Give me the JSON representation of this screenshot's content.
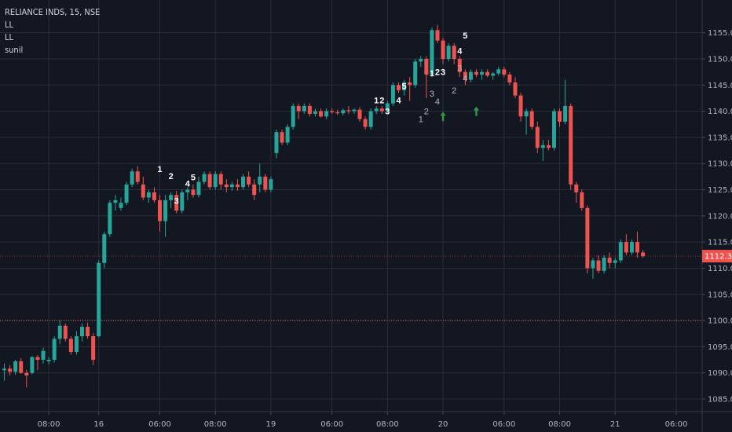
{
  "legend": {
    "symbol": "RELIANCE INDS, 15, NSE",
    "indicator1": "LL",
    "indicator2": "LL",
    "indicator3": "sunil"
  },
  "colors": {
    "background": "#131722",
    "grid": "#2a2e39",
    "up": "#26a69a",
    "down": "#ef5350",
    "price_line": "#ef5350",
    "arrow": "#2e9d3e",
    "axis_text": "#b2b5be"
  },
  "chart_data": {
    "type": "candlestick",
    "title": "RELIANCE INDS, 15, NSE",
    "ylim": [
      1082,
      1159
    ],
    "y_ticks": [
      1085,
      1090,
      1095,
      1100,
      1105,
      1110,
      1115,
      1120,
      1125,
      1130,
      1135,
      1140,
      1145,
      1150,
      1155
    ],
    "y_tick_labels": [
      "1085.00",
      "1090.00",
      "1095.00",
      "1100.00",
      "1105.00",
      "1110.00",
      "1115.00",
      "1120.00",
      "1125.00",
      "1130.00",
      "1135.00",
      "1140.00",
      "1145.00",
      "1150.00",
      "1155.00"
    ],
    "x_ticks": [
      {
        "label": "08:00",
        "bar": 8
      },
      {
        "label": "16",
        "bar": 17
      },
      {
        "label": "06:00",
        "bar": 28
      },
      {
        "label": "08:00",
        "bar": 38
      },
      {
        "label": "19",
        "bar": 48
      },
      {
        "label": "06:00",
        "bar": 59
      },
      {
        "label": "08:00",
        "bar": 69
      },
      {
        "label": "20",
        "bar": 79
      },
      {
        "label": "06:00",
        "bar": 90
      },
      {
        "label": "08:00",
        "bar": 100
      },
      {
        "label": "21",
        "bar": 110
      },
      {
        "label": "06:00",
        "bar": 121
      }
    ],
    "last_price": 1112.3,
    "last_price_label": "1112.30",
    "reference_line": 1100.0,
    "grid": true,
    "ohlc": [
      [
        1090.5,
        1091.8,
        1088.5,
        1090.8
      ],
      [
        1090.8,
        1091.5,
        1089.5,
        1090.2
      ],
      [
        1090.2,
        1092.5,
        1089.6,
        1092.2
      ],
      [
        1092.2,
        1092.8,
        1089.8,
        1090.0
      ],
      [
        1090.0,
        1090.6,
        1087.2,
        1089.5
      ],
      [
        1090.0,
        1093.2,
        1089.7,
        1093.0
      ],
      [
        1093.0,
        1093.4,
        1090.5,
        1092.5
      ],
      [
        1092.5,
        1094.8,
        1091.8,
        1094.2
      ],
      [
        1092.2,
        1093.0,
        1091.6,
        1092.5
      ],
      [
        1092.5,
        1097.0,
        1092.0,
        1096.5
      ],
      [
        1096.5,
        1100.0,
        1095.5,
        1099.0
      ],
      [
        1099.0,
        1099.4,
        1096.0,
        1096.5
      ],
      [
        1096.5,
        1097.0,
        1093.5,
        1094.0
      ],
      [
        1094.0,
        1098.0,
        1093.5,
        1097.0
      ],
      [
        1097.0,
        1099.5,
        1096.0,
        1098.8
      ],
      [
        1098.8,
        1099.6,
        1096.5,
        1097.0
      ],
      [
        1097.0,
        1097.6,
        1091.5,
        1092.5
      ],
      [
        1097.0,
        1111.5,
        1096.8,
        1111.0
      ],
      [
        1111.0,
        1117.0,
        1110.0,
        1116.5
      ],
      [
        1116.5,
        1123.0,
        1116.0,
        1122.5
      ],
      [
        1122.5,
        1124.0,
        1121.0,
        1123.0
      ],
      [
        1121.5,
        1123.5,
        1121.0,
        1122.5
      ],
      [
        1122.5,
        1126.5,
        1122.0,
        1126.0
      ],
      [
        1126.0,
        1129.0,
        1125.5,
        1128.5
      ],
      [
        1128.5,
        1129.5,
        1126.0,
        1126.5
      ],
      [
        1126.0,
        1127.5,
        1123.0,
        1123.5
      ],
      [
        1123.5,
        1125.0,
        1122.5,
        1124.5
      ],
      [
        1124.5,
        1125.5,
        1122.5,
        1123.0
      ],
      [
        1123.0,
        1124.0,
        1117.0,
        1119.0
      ],
      [
        1119.0,
        1124.0,
        1116.0,
        1123.0
      ],
      [
        1123.0,
        1124.5,
        1121.5,
        1124.0
      ],
      [
        1124.0,
        1124.8,
        1120.5,
        1121.0
      ],
      [
        1121.0,
        1125.0,
        1120.5,
        1124.5
      ],
      [
        1124.5,
        1125.5,
        1123.0,
        1125.0
      ],
      [
        1125.0,
        1126.0,
        1123.5,
        1124.0
      ],
      [
        1124.0,
        1127.5,
        1123.5,
        1126.5
      ],
      [
        1126.5,
        1128.5,
        1126.0,
        1128.0
      ],
      [
        1128.0,
        1128.5,
        1125.0,
        1125.5
      ],
      [
        1125.5,
        1128.5,
        1125.0,
        1128.0
      ],
      [
        1128.0,
        1128.5,
        1125.0,
        1126.0
      ],
      [
        1126.0,
        1127.0,
        1124.5,
        1125.5
      ],
      [
        1125.5,
        1126.5,
        1124.8,
        1126.0
      ],
      [
        1126.0,
        1127.0,
        1124.8,
        1125.5
      ],
      [
        1125.5,
        1128.0,
        1125.0,
        1127.5
      ],
      [
        1127.5,
        1128.5,
        1125.5,
        1126.0
      ],
      [
        1126.0,
        1127.0,
        1123.0,
        1124.0
      ],
      [
        1126.0,
        1130.0,
        1124.5,
        1127.5
      ],
      [
        1127.5,
        1128.0,
        1124.5,
        1125.0
      ],
      [
        1125.0,
        1127.5,
        1124.5,
        1127.0
      ],
      [
        1132.0,
        1136.5,
        1131.0,
        1136.0
      ],
      [
        1136.0,
        1136.5,
        1133.5,
        1134.0
      ],
      [
        1134.0,
        1137.5,
        1133.5,
        1137.0
      ],
      [
        1137.0,
        1141.5,
        1136.5,
        1141.0
      ],
      [
        1141.0,
        1141.5,
        1138.5,
        1140.0
      ],
      [
        1140.0,
        1141.5,
        1139.5,
        1141.0
      ],
      [
        1141.0,
        1141.5,
        1139.0,
        1139.5
      ],
      [
        1139.5,
        1140.5,
        1139.0,
        1140.0
      ],
      [
        1140.0,
        1140.5,
        1138.8,
        1139.0
      ],
      [
        1139.0,
        1140.5,
        1138.5,
        1140.0
      ],
      [
        1140.0,
        1140.5,
        1139.5,
        1139.8
      ],
      [
        1139.8,
        1140.3,
        1139.3,
        1139.6
      ],
      [
        1139.6,
        1140.5,
        1139.2,
        1140.2
      ],
      [
        1140.2,
        1141.0,
        1139.5,
        1140.0
      ],
      [
        1140.0,
        1140.5,
        1139.5,
        1140.3
      ],
      [
        1140.3,
        1140.8,
        1138.0,
        1138.5
      ],
      [
        1138.5,
        1139.0,
        1136.5,
        1137.0
      ],
      [
        1137.0,
        1140.5,
        1136.5,
        1140.0
      ],
      [
        1140.0,
        1141.0,
        1139.5,
        1140.5
      ],
      [
        1140.5,
        1141.0,
        1139.5,
        1140.0
      ],
      [
        1140.0,
        1142.0,
        1139.5,
        1141.5
      ],
      [
        1141.5,
        1145.5,
        1141.0,
        1145.0
      ],
      [
        1145.0,
        1145.5,
        1143.5,
        1144.0
      ],
      [
        1144.0,
        1146.0,
        1143.0,
        1145.5
      ],
      [
        1145.5,
        1146.5,
        1142.0,
        1145.0
      ],
      [
        1145.0,
        1150.0,
        1144.5,
        1149.5
      ],
      [
        1149.5,
        1150.5,
        1148.5,
        1150.0
      ],
      [
        1150.0,
        1150.5,
        1142.5,
        1147.0
      ],
      [
        1147.0,
        1156.0,
        1146.5,
        1155.5
      ],
      [
        1155.5,
        1156.5,
        1153.0,
        1153.5
      ],
      [
        1153.5,
        1154.0,
        1149.0,
        1150.0
      ],
      [
        1150.0,
        1153.0,
        1149.5,
        1152.5
      ],
      [
        1152.5,
        1153.0,
        1149.0,
        1150.0
      ],
      [
        1150.0,
        1150.5,
        1146.5,
        1147.5
      ],
      [
        1147.5,
        1148.0,
        1145.0,
        1146.0
      ],
      [
        1146.0,
        1148.0,
        1145.5,
        1147.5
      ],
      [
        1147.5,
        1148.0,
        1146.5,
        1147.0
      ],
      [
        1147.0,
        1148.0,
        1146.0,
        1147.5
      ],
      [
        1147.5,
        1148.0,
        1146.5,
        1146.8
      ],
      [
        1146.8,
        1147.5,
        1146.0,
        1147.2
      ],
      [
        1147.2,
        1148.5,
        1146.8,
        1148.0
      ],
      [
        1148.0,
        1148.5,
        1146.5,
        1147.0
      ],
      [
        1147.0,
        1147.5,
        1145.0,
        1145.5
      ],
      [
        1145.5,
        1146.5,
        1142.5,
        1143.0
      ],
      [
        1143.0,
        1143.5,
        1138.0,
        1139.0
      ],
      [
        1139.0,
        1140.5,
        1135.5,
        1140.0
      ],
      [
        1140.0,
        1140.5,
        1136.5,
        1137.0
      ],
      [
        1137.0,
        1138.0,
        1132.0,
        1133.0
      ],
      [
        1133.0,
        1134.5,
        1130.5,
        1133.5
      ],
      [
        1133.5,
        1134.5,
        1132.5,
        1133.0
      ],
      [
        1133.0,
        1140.5,
        1132.5,
        1140.0
      ],
      [
        1140.0,
        1140.5,
        1137.0,
        1138.0
      ],
      [
        1138.0,
        1146.0,
        1137.5,
        1141.0
      ],
      [
        1141.0,
        1141.5,
        1125.0,
        1126.0
      ],
      [
        1126.0,
        1126.5,
        1122.5,
        1124.5
      ],
      [
        1124.5,
        1125.0,
        1121.0,
        1121.5
      ],
      [
        1121.5,
        1122.0,
        1109.0,
        1110.0
      ],
      [
        1110.0,
        1112.0,
        1108.0,
        1111.5
      ],
      [
        1111.5,
        1112.5,
        1109.0,
        1109.5
      ],
      [
        1109.5,
        1112.5,
        1109.0,
        1112.0
      ],
      [
        1112.0,
        1113.0,
        1110.0,
        1111.0
      ],
      [
        1111.0,
        1112.0,
        1110.0,
        1111.5
      ],
      [
        1111.5,
        1115.5,
        1111.0,
        1115.0
      ],
      [
        1115.0,
        1116.5,
        1112.5,
        1113.0
      ],
      [
        1113.0,
        1115.5,
        1112.5,
        1115.0
      ],
      [
        1115.0,
        1117.0,
        1112.0,
        1113.0
      ],
      [
        1113.0,
        1113.5,
        1112.0,
        1112.3
      ]
    ],
    "annotations": [
      {
        "text": "1",
        "bar": 28,
        "y": 1128.4,
        "color": "white"
      },
      {
        "text": "2",
        "bar": 30,
        "y": 1127.0,
        "color": "white"
      },
      {
        "text": "3",
        "bar": 31,
        "y": 1122.3,
        "color": "white"
      },
      {
        "text": "4",
        "bar": 33,
        "y": 1125.6,
        "color": "white"
      },
      {
        "text": "5",
        "bar": 34,
        "y": 1126.8,
        "color": "white"
      },
      {
        "text": "1",
        "bar": 67,
        "y": 1141.5,
        "color": "white"
      },
      {
        "text": "2",
        "bar": 68,
        "y": 1141.5,
        "color": "white"
      },
      {
        "text": "3",
        "bar": 69,
        "y": 1139.4,
        "color": "white"
      },
      {
        "text": "4",
        "bar": 71,
        "y": 1141.5,
        "color": "white"
      },
      {
        "text": "5",
        "bar": 72,
        "y": 1144.2,
        "color": "white"
      },
      {
        "text": "1",
        "bar": 75,
        "y": 1137.9,
        "color": "grey"
      },
      {
        "text": "2",
        "bar": 76,
        "y": 1139.4,
        "color": "grey"
      },
      {
        "text": "3",
        "bar": 77,
        "y": 1142.8,
        "color": "grey"
      },
      {
        "text": "4",
        "bar": 78,
        "y": 1141.3,
        "color": "grey"
      },
      {
        "text": "1",
        "bar": 77,
        "y": 1146.7,
        "color": "white"
      },
      {
        "text": "2",
        "bar": 78,
        "y": 1146.9,
        "color": "white"
      },
      {
        "text": "3",
        "bar": 79,
        "y": 1146.9,
        "color": "white"
      },
      {
        "text": "2",
        "bar": 81,
        "y": 1143.4,
        "color": "grey"
      },
      {
        "text": "3",
        "bar": 82,
        "y": 1147.7,
        "color": "grey"
      },
      {
        "text": "4",
        "bar": 83,
        "y": 1145.7,
        "color": "grey"
      },
      {
        "text": "4",
        "bar": 82,
        "y": 1151.0,
        "color": "white"
      },
      {
        "text": "5",
        "bar": 83,
        "y": 1153.9,
        "color": "white"
      }
    ],
    "arrows": [
      {
        "bar": 79,
        "y": 1139.0,
        "direction": "up"
      },
      {
        "bar": 85,
        "y": 1140.0,
        "direction": "up"
      }
    ]
  }
}
